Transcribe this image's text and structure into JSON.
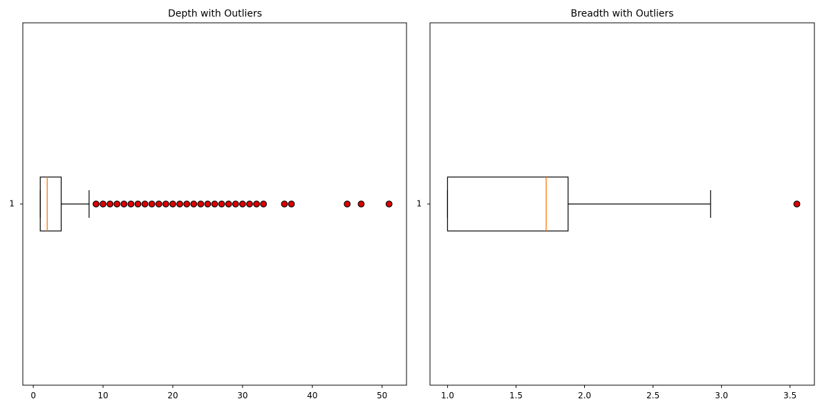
{
  "chart_data": [
    {
      "type": "boxplot",
      "title": "Depth with Outliers",
      "orientation": "horizontal",
      "y_ticks": [
        "1"
      ],
      "xlim": [
        -1.5,
        53.5
      ],
      "x_ticks": [
        0,
        10,
        20,
        30,
        40,
        50
      ],
      "x_tick_labels": [
        "0",
        "10",
        "20",
        "30",
        "40",
        "50"
      ],
      "box": {
        "whisker_low": 1,
        "q1": 1,
        "median": 2,
        "q3": 4,
        "whisker_high": 8
      },
      "outliers": [
        9,
        10,
        11,
        12,
        13,
        14,
        15,
        16,
        17,
        18,
        19,
        20,
        21,
        22,
        23,
        24,
        25,
        26,
        27,
        28,
        29,
        30,
        31,
        32,
        33,
        36,
        37,
        45,
        47,
        51
      ],
      "colors": {
        "box": "#000000",
        "median": "#ff7f0e",
        "outlier_fill": "#e00000",
        "outlier_edge": "#000000"
      }
    },
    {
      "type": "boxplot",
      "title": "Breadth with Outliers",
      "orientation": "horizontal",
      "y_ticks": [
        "1"
      ],
      "xlim": [
        0.872,
        3.678
      ],
      "x_ticks": [
        1.0,
        1.5,
        2.0,
        2.5,
        3.0,
        3.5
      ],
      "x_tick_labels": [
        "1.0",
        "1.5",
        "2.0",
        "2.5",
        "3.0",
        "3.5"
      ],
      "box": {
        "whisker_low": 1.0,
        "q1": 1.0,
        "median": 1.72,
        "q3": 1.88,
        "whisker_high": 2.92
      },
      "outliers": [
        3.55
      ],
      "colors": {
        "box": "#000000",
        "median": "#ff7f0e",
        "outlier_fill": "#e00000",
        "outlier_edge": "#000000"
      }
    }
  ]
}
